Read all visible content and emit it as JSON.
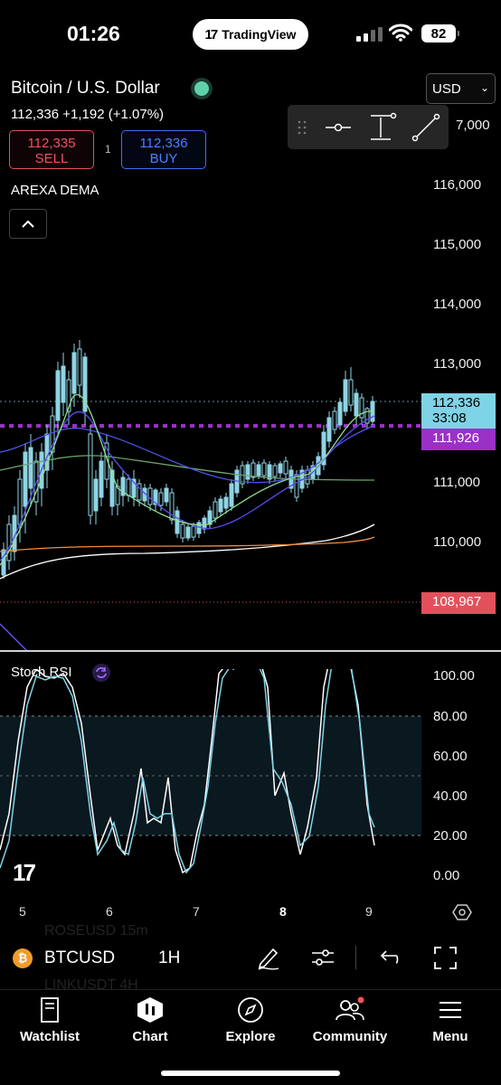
{
  "status_bar": {
    "time": "01:26",
    "app_pill": "TradingView",
    "battery": "82"
  },
  "symbol": {
    "title": "Bitcoin / U.S. Dollar",
    "price_line": "112,336 +1,192 (+1.07%)",
    "sell_price": "112,335",
    "sell_label": "SELL",
    "buy_price": "112,336",
    "buy_label": "BUY",
    "spread": "1"
  },
  "indicator": {
    "name": "AREXA DEMA"
  },
  "currency": {
    "selected": "USD"
  },
  "price_axis": {
    "labels": [
      "7,000",
      "116,000",
      "115,000",
      "114,000",
      "113,000",
      "111,000",
      "110,000"
    ],
    "current_price": "112,336",
    "countdown": "33:08",
    "level_tag": "111,926",
    "low_tag": "108,967"
  },
  "stoch_rsi": {
    "title": "Stoch RSI",
    "labels": [
      "100.00",
      "80.00",
      "60.00",
      "40.00",
      "20.00",
      "0.00"
    ]
  },
  "time_axis": {
    "labels": [
      "5",
      "6",
      "7",
      "8",
      "9"
    ]
  },
  "symbol_bar": {
    "ticker": "BTCUSD",
    "timeframe": "1H",
    "ghost_rows": [
      "ROSEUSD  15m",
      "LINKUSDT  4H"
    ]
  },
  "tabs": [
    {
      "label": "Watchlist",
      "icon": "book-icon"
    },
    {
      "label": "Chart",
      "icon": "chart-icon"
    },
    {
      "label": "Explore",
      "icon": "compass-icon"
    },
    {
      "label": "Community",
      "icon": "people-icon"
    },
    {
      "label": "Menu",
      "icon": "hamburger-icon"
    }
  ],
  "colors": {
    "up": "#7fd3e6",
    "sell": "#f2525c",
    "buy": "#4a80ff",
    "level": "#9b30c7",
    "low": "#e2515b",
    "price_tag": "#7fd3e6"
  }
}
